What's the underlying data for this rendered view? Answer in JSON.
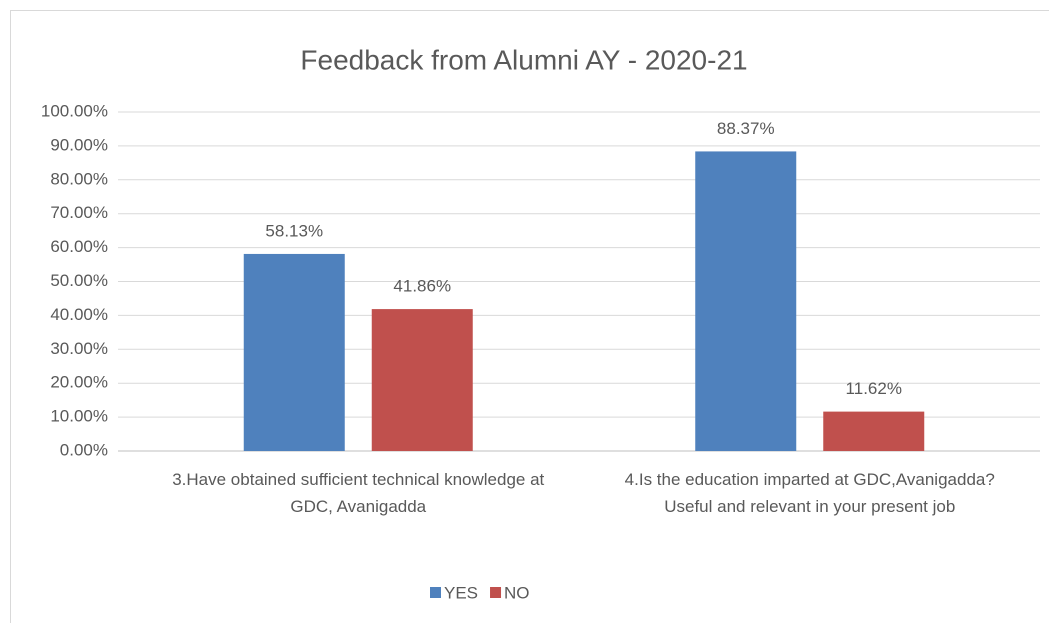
{
  "chart_data": {
    "type": "bar",
    "title": "Feedback from Alumni AY - 2020-21",
    "categories": [
      "3.Have obtained sufficient technical knowledge at GDC, Avanigadda",
      "4.Is the education imparted at GDC,Avanigadda? Useful and relevant in your present job"
    ],
    "series": [
      {
        "name": "YES",
        "color": "#4f81bd",
        "values": [
          58.13,
          88.37
        ],
        "value_labels": [
          "58.13%",
          "88.37%"
        ]
      },
      {
        "name": "NO",
        "color": "#c0504d",
        "values": [
          41.86,
          11.62
        ],
        "value_labels": [
          "41.86%",
          "11.62%"
        ]
      }
    ],
    "ylim": [
      0,
      100
    ],
    "yticks": [
      {
        "value": 0,
        "label": "0.00%"
      },
      {
        "value": 10,
        "label": "10.00%"
      },
      {
        "value": 20,
        "label": "20.00%"
      },
      {
        "value": 30,
        "label": "30.00%"
      },
      {
        "value": 40,
        "label": "40.00%"
      },
      {
        "value": 50,
        "label": "50.00%"
      },
      {
        "value": 60,
        "label": "60.00%"
      },
      {
        "value": 70,
        "label": "70.00%"
      },
      {
        "value": 80,
        "label": "80.00%"
      },
      {
        "value": 90,
        "label": "90.00%"
      },
      {
        "value": 100,
        "label": "100.00%"
      }
    ],
    "grid": true,
    "legend": "bottom"
  }
}
